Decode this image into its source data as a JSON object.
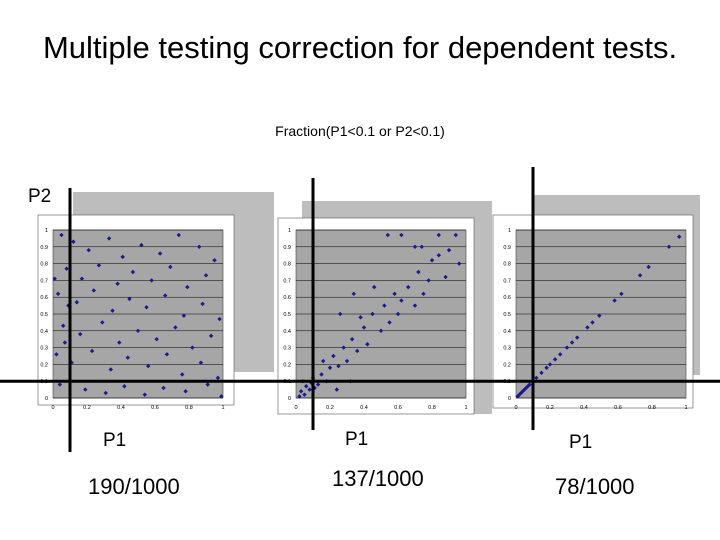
{
  "title": "Multiple testing correction for dependent tests.",
  "subtitle": "Fraction(P1<0.1 or P2<0.1)",
  "y_axis_label": "P2",
  "colors": {
    "point": "#1a1a8c",
    "plot_bg": "#a6a6a6",
    "shade": "#bdbdbd",
    "grid": "#000000",
    "threshold_line": "#000000"
  },
  "threshold": 0.1,
  "chart_data": [
    {
      "type": "scatter",
      "id": "independent",
      "xlabel": "P1",
      "ylabel": "P2",
      "xlim": [
        0,
        1
      ],
      "ylim": [
        0,
        1
      ],
      "xticks": [
        "0",
        "0.2",
        "0.4",
        "0.6",
        "0.8",
        "1"
      ],
      "yticks": [
        "0",
        "0.1",
        "0.2",
        "0.3",
        "0.4",
        "0.5",
        "0.6",
        "0.7",
        "0.8",
        "0.9",
        "1"
      ],
      "result": "190/1000",
      "pattern": "uniform random P1 and P2, 1000 points",
      "points": [
        [
          0.05,
          0.97
        ],
        [
          0.12,
          0.93
        ],
        [
          0.21,
          0.88
        ],
        [
          0.33,
          0.95
        ],
        [
          0.41,
          0.84
        ],
        [
          0.52,
          0.91
        ],
        [
          0.63,
          0.86
        ],
        [
          0.74,
          0.97
        ],
        [
          0.86,
          0.9
        ],
        [
          0.95,
          0.82
        ],
        [
          0.08,
          0.77
        ],
        [
          0.17,
          0.71
        ],
        [
          0.27,
          0.79
        ],
        [
          0.38,
          0.68
        ],
        [
          0.47,
          0.75
        ],
        [
          0.58,
          0.7
        ],
        [
          0.69,
          0.78
        ],
        [
          0.79,
          0.66
        ],
        [
          0.9,
          0.73
        ],
        [
          0.03,
          0.62
        ],
        [
          0.14,
          0.57
        ],
        [
          0.24,
          0.64
        ],
        [
          0.35,
          0.52
        ],
        [
          0.45,
          0.59
        ],
        [
          0.55,
          0.54
        ],
        [
          0.66,
          0.61
        ],
        [
          0.77,
          0.49
        ],
        [
          0.88,
          0.56
        ],
        [
          0.98,
          0.47
        ],
        [
          0.06,
          0.43
        ],
        [
          0.16,
          0.38
        ],
        [
          0.29,
          0.45
        ],
        [
          0.39,
          0.33
        ],
        [
          0.5,
          0.4
        ],
        [
          0.61,
          0.35
        ],
        [
          0.72,
          0.42
        ],
        [
          0.82,
          0.3
        ],
        [
          0.93,
          0.37
        ],
        [
          0.02,
          0.26
        ],
        [
          0.11,
          0.21
        ],
        [
          0.23,
          0.28
        ],
        [
          0.34,
          0.17
        ],
        [
          0.44,
          0.24
        ],
        [
          0.56,
          0.19
        ],
        [
          0.67,
          0.26
        ],
        [
          0.76,
          0.14
        ],
        [
          0.87,
          0.21
        ],
        [
          0.97,
          0.12
        ],
        [
          0.04,
          0.08
        ],
        [
          0.19,
          0.05
        ],
        [
          0.31,
          0.03
        ],
        [
          0.42,
          0.07
        ],
        [
          0.54,
          0.02
        ],
        [
          0.65,
          0.06
        ],
        [
          0.78,
          0.04
        ],
        [
          0.91,
          0.08
        ],
        [
          0.99,
          0.01
        ],
        [
          0.07,
          0.33
        ],
        [
          0.09,
          0.55
        ],
        [
          0.01,
          0.71
        ]
      ]
    },
    {
      "type": "scatter",
      "id": "partially-dependent",
      "xlabel": "P1",
      "ylabel": "P2",
      "xlim": [
        0,
        1
      ],
      "ylim": [
        0,
        1
      ],
      "xticks": [
        "0",
        "0.2",
        "0.4",
        "0.6",
        "0.8",
        "1"
      ],
      "yticks": [
        "0",
        "0.1",
        "0.2",
        "0.3",
        "0.4",
        "0.5",
        "0.6",
        "0.7",
        "0.8",
        "0.9",
        "1"
      ],
      "result": "137/1000",
      "pattern": "points clustered along the diagonal at discrete values",
      "points": [
        [
          0.02,
          0.01
        ],
        [
          0.03,
          0.04
        ],
        [
          0.05,
          0.02
        ],
        [
          0.06,
          0.07
        ],
        [
          0.08,
          0.05
        ],
        [
          0.09,
          0.09
        ],
        [
          0.11,
          0.06
        ],
        [
          0.04,
          0.1
        ],
        [
          0.1,
          0.12
        ],
        [
          0.13,
          0.08
        ],
        [
          0.15,
          0.14
        ],
        [
          0.18,
          0.1
        ],
        [
          0.2,
          0.18
        ],
        [
          0.16,
          0.22
        ],
        [
          0.22,
          0.25
        ],
        [
          0.25,
          0.19
        ],
        [
          0.28,
          0.3
        ],
        [
          0.3,
          0.22
        ],
        [
          0.33,
          0.35
        ],
        [
          0.36,
          0.28
        ],
        [
          0.4,
          0.42
        ],
        [
          0.42,
          0.32
        ],
        [
          0.38,
          0.48
        ],
        [
          0.45,
          0.5
        ],
        [
          0.5,
          0.4
        ],
        [
          0.52,
          0.55
        ],
        [
          0.55,
          0.45
        ],
        [
          0.58,
          0.62
        ],
        [
          0.6,
          0.5
        ],
        [
          0.62,
          0.58
        ],
        [
          0.66,
          0.66
        ],
        [
          0.7,
          0.55
        ],
        [
          0.72,
          0.75
        ],
        [
          0.75,
          0.62
        ],
        [
          0.78,
          0.7
        ],
        [
          0.8,
          0.82
        ],
        [
          0.84,
          0.85
        ],
        [
          0.88,
          0.72
        ],
        [
          0.9,
          0.88
        ],
        [
          0.94,
          0.97
        ],
        [
          0.96,
          0.8
        ],
        [
          0.54,
          0.97
        ],
        [
          0.62,
          0.97
        ],
        [
          0.74,
          0.9
        ],
        [
          0.84,
          0.97
        ],
        [
          0.26,
          0.5
        ],
        [
          0.34,
          0.62
        ],
        [
          0.46,
          0.66
        ],
        [
          0.7,
          0.9
        ],
        [
          0.24,
          0.05
        ],
        [
          0.32,
          0.1
        ]
      ]
    },
    {
      "type": "scatter",
      "id": "fully-dependent",
      "xlabel": "P1",
      "ylabel": "P2",
      "xlim": [
        0,
        1
      ],
      "ylim": [
        0,
        1
      ],
      "xticks": [
        "0",
        "0.2",
        "0.4",
        "0.6",
        "0.8",
        "1"
      ],
      "yticks": [
        "0",
        "0.1",
        "0.2",
        "0.3",
        "0.4",
        "0.5",
        "0.6",
        "0.7",
        "0.8",
        "0.9",
        "1"
      ],
      "result": "78/1000",
      "pattern": "P1 equals P2, points on the diagonal",
      "points": [
        [
          0.01,
          0.01
        ],
        [
          0.02,
          0.02
        ],
        [
          0.03,
          0.03
        ],
        [
          0.04,
          0.04
        ],
        [
          0.05,
          0.05
        ],
        [
          0.06,
          0.06
        ],
        [
          0.07,
          0.07
        ],
        [
          0.08,
          0.08
        ],
        [
          0.1,
          0.1
        ],
        [
          0.12,
          0.12
        ],
        [
          0.15,
          0.15
        ],
        [
          0.18,
          0.18
        ],
        [
          0.2,
          0.2
        ],
        [
          0.23,
          0.23
        ],
        [
          0.26,
          0.26
        ],
        [
          0.3,
          0.3
        ],
        [
          0.33,
          0.33
        ],
        [
          0.36,
          0.36
        ],
        [
          0.42,
          0.42
        ],
        [
          0.45,
          0.45
        ],
        [
          0.49,
          0.49
        ],
        [
          0.58,
          0.58
        ],
        [
          0.62,
          0.62
        ],
        [
          0.73,
          0.73
        ],
        [
          0.78,
          0.78
        ],
        [
          0.9,
          0.9
        ],
        [
          0.96,
          0.96
        ]
      ]
    }
  ]
}
